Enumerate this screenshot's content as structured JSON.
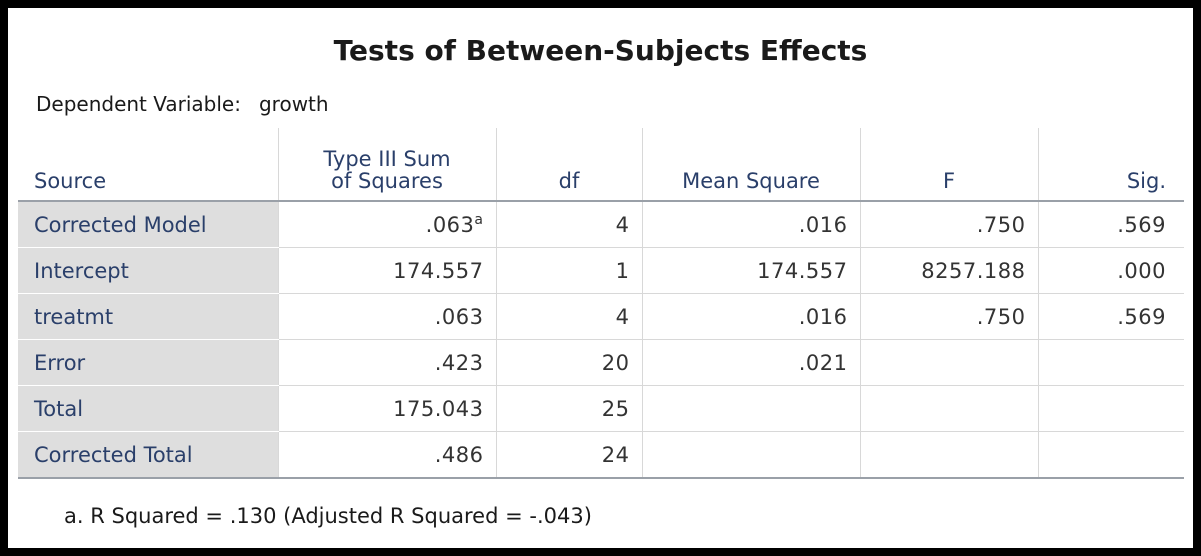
{
  "title": "Tests of Between-Subjects Effects",
  "dependent_variable": {
    "label": "Dependent Variable:",
    "value": "growth"
  },
  "columns": {
    "source": "Source",
    "ss_line1": "Type III Sum",
    "ss_line2": "of Squares",
    "df": "df",
    "ms": "Mean Square",
    "f": "F",
    "sig": "Sig."
  },
  "rows": [
    {
      "source": "Corrected Model",
      "ss": ".063",
      "ss_note": "a",
      "df": "4",
      "ms": ".016",
      "f": ".750",
      "sig": ".569"
    },
    {
      "source": "Intercept",
      "ss": "174.557",
      "ss_note": "",
      "df": "1",
      "ms": "174.557",
      "f": "8257.188",
      "sig": ".000"
    },
    {
      "source": "treatmt",
      "ss": ".063",
      "ss_note": "",
      "df": "4",
      "ms": ".016",
      "f": ".750",
      "sig": ".569"
    },
    {
      "source": "Error",
      "ss": ".423",
      "ss_note": "",
      "df": "20",
      "ms": ".021",
      "f": "",
      "sig": ""
    },
    {
      "source": "Total",
      "ss": "175.043",
      "ss_note": "",
      "df": "25",
      "ms": "",
      "f": "",
      "sig": ""
    },
    {
      "source": "Corrected Total",
      "ss": ".486",
      "ss_note": "",
      "df": "24",
      "ms": "",
      "f": "",
      "sig": ""
    }
  ],
  "footnote": "a. R Squared = .130 (Adjusted R Squared = -.043)"
}
